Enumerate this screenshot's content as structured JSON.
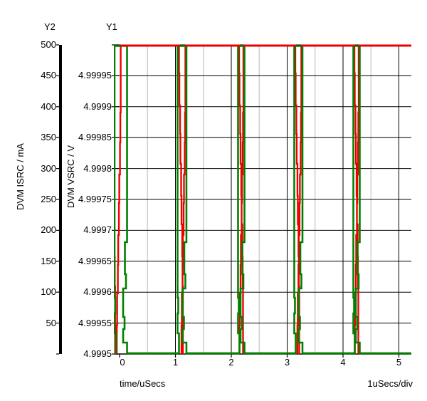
{
  "header": {
    "y2_title": "Y2",
    "y1_title": "Y1"
  },
  "axes": {
    "y2": {
      "unit_label": "DVM ISRC / mA",
      "ticks": [
        "500",
        "450",
        "400",
        "350",
        "300",
        "250",
        "200",
        "150",
        "100",
        "50"
      ]
    },
    "y1": {
      "unit_label": "DVM VSRC / V",
      "ticks": [
        "4.99995",
        "4.9999",
        "4.99985",
        "4.9998",
        "4.99975",
        "4.9997",
        "4.99965",
        "4.9996",
        "4.99955",
        "4.9995"
      ]
    },
    "x": {
      "unit_label": "time/uSecs",
      "div_label": "1uSecs/div",
      "ticks": [
        "0",
        "1",
        "2",
        "3",
        "4",
        "5"
      ]
    }
  },
  "chart_data": {
    "type": "line",
    "title": "",
    "xlabel": "time/uSecs",
    "x_per_div": "1uSecs/div",
    "x_range_usecs": [
      0,
      5.2
    ],
    "grid": {
      "major_vertical_usecs": [
        1,
        2,
        3,
        4,
        5
      ],
      "minor_vertical_usecs": [
        0.5,
        1.5,
        2.5,
        3.5,
        4.5
      ],
      "horizontal_divisions": 10
    },
    "axes": [
      {
        "id": "Y2",
        "label": "DVM ISRC / mA",
        "range": [
          0,
          500
        ],
        "tick_step": 50
      },
      {
        "id": "Y1",
        "label": "DVM VSRC / V",
        "range": [
          4.9995,
          5.0
        ],
        "tick_step": 5e-05
      }
    ],
    "series": [
      {
        "name": "DVM ISRC",
        "axis": "Y2",
        "unit": "mA",
        "color": "#ee0000",
        "baseline_value": 500,
        "pulse_low_value": 0,
        "description": "Holds 500 mA; at each event ramps down in steps to 0 mA then snaps back to 500 mA"
      },
      {
        "name": "DVM VSRC",
        "axis": "Y1",
        "unit": "V",
        "color": "#008000",
        "baseline_value": 4.9995,
        "pulse_high_value": 5.0,
        "description": "Holds 4.9995 V; rises to 5.0 V while the current is off, then falls back in steps"
      }
    ],
    "events_usecs": [
      {
        "green_high_start": -0.09,
        "green_high_end": 0.134,
        "red_low_start": -0.15,
        "red_low_end": 0.02
      },
      {
        "green_high_start": 1.038,
        "green_high_end": 1.197,
        "red_low_start": 1.064,
        "red_low_end": 1.178
      },
      {
        "green_high_start": 2.121,
        "green_high_end": 2.236,
        "red_low_start": 2.14,
        "red_low_end": 2.217
      },
      {
        "green_high_start": 3.127,
        "green_high_end": 3.274,
        "red_low_start": 3.146,
        "red_low_end": 3.254
      },
      {
        "green_high_start": 4.185,
        "green_high_end": 4.299,
        "red_low_start": 4.204,
        "red_low_end": 4.28
      }
    ],
    "colors": {
      "red_trace": "#ee0000",
      "green_trace": "#008000",
      "grid_major": "#000000",
      "grid_minor": "#c4c4c4"
    }
  }
}
